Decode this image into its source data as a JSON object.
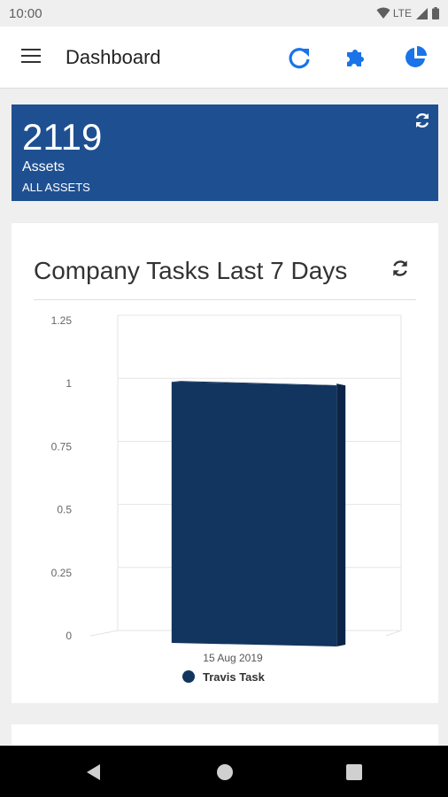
{
  "status_bar": {
    "time": "10:00",
    "network": "LTE"
  },
  "app_bar": {
    "title": "Dashboard",
    "accent": "#1a73e8"
  },
  "assets_card": {
    "count": "2119",
    "label": "Assets",
    "link": "ALL ASSETS",
    "color": "#1e5091"
  },
  "chart_card": {
    "title": "Company Tasks Last 7 Days"
  },
  "chart_data": {
    "type": "bar",
    "categories": [
      "15 Aug 2019"
    ],
    "series": [
      {
        "name": "Travis Task",
        "values": [
          1
        ],
        "color": "#12355f"
      }
    ],
    "ylim": [
      0,
      1.25
    ],
    "yticks": [
      "0",
      "0.25",
      "0.5",
      "0.75",
      "1",
      "1.25"
    ],
    "grid": true,
    "legend": "bottom"
  }
}
